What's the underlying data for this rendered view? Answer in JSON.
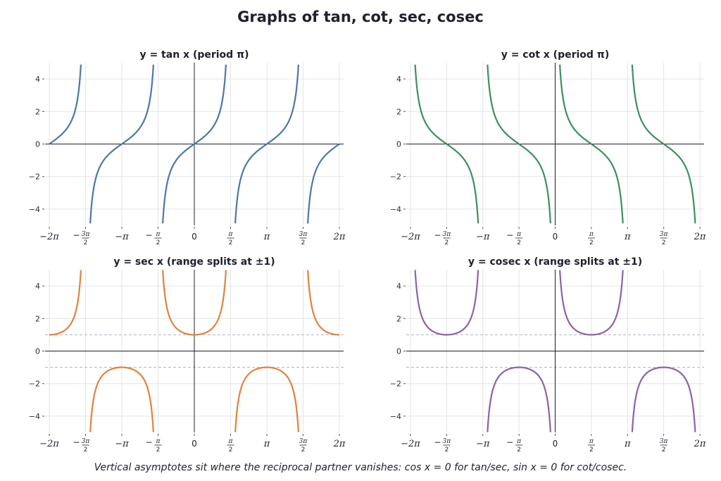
{
  "title": "Graphs of  tan, cot, sec, cosec",
  "footnote": "Vertical asymptotes sit where the reciprocal partner vanishes: cos x = 0 for tan/sec, sin x = 0 for cot/cosec.",
  "chart_data": [
    {
      "type": "line",
      "function": "tan",
      "title": "y = tan x  (period π)",
      "color": "#4c78a8",
      "xlim": [
        -6.2832,
        6.2832
      ],
      "ylim": [
        -5,
        5
      ],
      "asymptotes": [
        -4.7124,
        -1.5708,
        1.5708,
        4.7124
      ],
      "reference_lines": [],
      "grid": true,
      "xticks": [
        "−2π",
        "−3π/2",
        "−π",
        "−π/2",
        "0",
        "π/2",
        "π",
        "3π/2",
        "2π"
      ],
      "yticks": [
        "4",
        "2",
        "0",
        "−2",
        "−4"
      ]
    },
    {
      "type": "line",
      "function": "cot",
      "title": "y = cot x  (period π)",
      "color": "#3e8f5e",
      "xlim": [
        -6.2832,
        6.2832
      ],
      "ylim": [
        -5,
        5
      ],
      "asymptotes": [
        -6.2832,
        -3.1416,
        0,
        3.1416,
        6.2832
      ],
      "reference_lines": [],
      "grid": true,
      "xticks": [
        "−2π",
        "−3π/2",
        "−π",
        "−π/2",
        "0",
        "π/2",
        "π",
        "3π/2",
        "2π"
      ],
      "yticks": [
        "4",
        "2",
        "0",
        "−2",
        "−4"
      ]
    },
    {
      "type": "line",
      "function": "sec",
      "title": "y = sec x  (range splits at ±1)",
      "color": "#e0833e",
      "xlim": [
        -6.2832,
        6.2832
      ],
      "ylim": [
        -5,
        5
      ],
      "asymptotes": [
        -4.7124,
        -1.5708,
        1.5708,
        4.7124
      ],
      "reference_lines": [
        1,
        -1
      ],
      "grid": true,
      "xticks": [
        "−2π",
        "−3π/2",
        "−π",
        "−π/2",
        "0",
        "π/2",
        "π",
        "3π/2",
        "2π"
      ],
      "yticks": [
        "4",
        "2",
        "0",
        "−2",
        "−4"
      ]
    },
    {
      "type": "line",
      "function": "csc",
      "title": "y = cosec x  (range splits at ±1)",
      "color": "#8c62aa",
      "xlim": [
        -6.2832,
        6.2832
      ],
      "ylim": [
        -5,
        5
      ],
      "asymptotes": [
        -6.2832,
        -3.1416,
        0,
        3.1416,
        6.2832
      ],
      "reference_lines": [
        1,
        -1
      ],
      "grid": true,
      "xticks": [
        "−2π",
        "−3π/2",
        "−π",
        "−π/2",
        "0",
        "π/2",
        "π",
        "3π/2",
        "2π"
      ],
      "yticks": [
        "4",
        "2",
        "0",
        "−2",
        "−4"
      ]
    }
  ]
}
